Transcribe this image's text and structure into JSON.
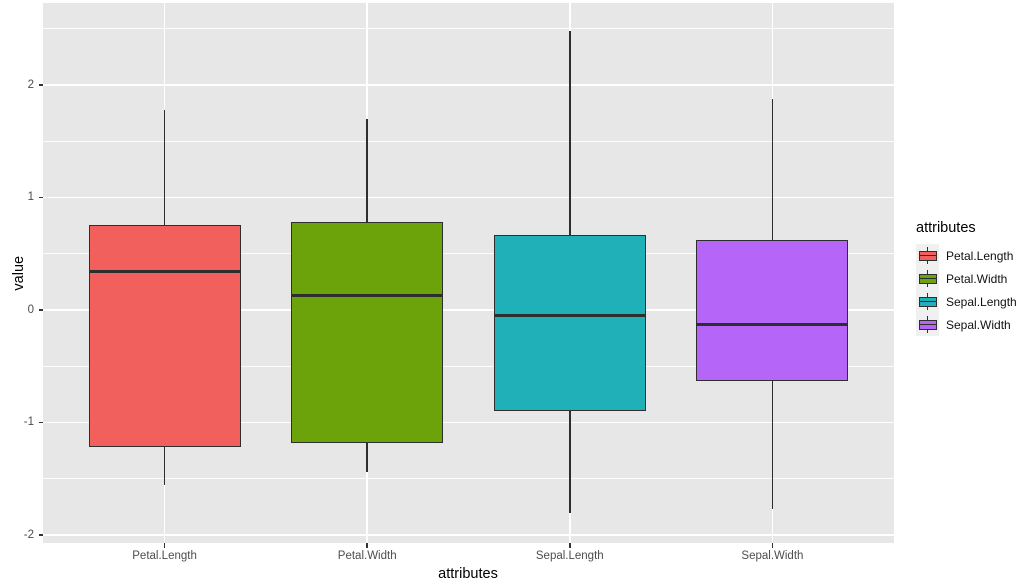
{
  "chart_data": {
    "type": "boxplot",
    "title": "",
    "xlabel": "attributes",
    "ylabel": "value",
    "categories": [
      "Petal.Length",
      "Petal.Width",
      "Sepal.Length",
      "Sepal.Width"
    ],
    "series": [
      {
        "name": "Petal.Length",
        "color": "#F1605D",
        "min": -1.55,
        "q1": -1.22,
        "median": 0.34,
        "q3": 0.76,
        "max": 1.78
      },
      {
        "name": "Petal.Width",
        "color": "#6CA30B",
        "min": -1.44,
        "q1": -1.18,
        "median": 0.13,
        "q3": 0.78,
        "max": 1.7
      },
      {
        "name": "Sepal.Length",
        "color": "#1FB1B7",
        "min": -1.8,
        "q1": -0.9,
        "median": -0.05,
        "q3": 0.67,
        "max": 2.48
      },
      {
        "name": "Sepal.Width",
        "color": "#B565F7",
        "min": -1.77,
        "q1": -0.63,
        "median": -0.13,
        "q3": 0.62,
        "max": 1.88
      }
    ],
    "y_ticks": [
      "2",
      "1",
      "0",
      "-1",
      "-2"
    ],
    "y_tick_values": [
      2,
      1,
      0,
      -1,
      -2
    ],
    "y_minor_tick_values": [
      2.5,
      1.5,
      0.5,
      -0.5,
      -1.5
    ],
    "ylim": [
      -2.07,
      2.73
    ],
    "grid": true,
    "legend": {
      "title": "attributes",
      "position": "right",
      "entries": [
        {
          "label": "Petal.Length",
          "color": "#F1605D"
        },
        {
          "label": "Petal.Width",
          "color": "#6CA30B"
        },
        {
          "label": "Sepal.Length",
          "color": "#1FB1B7"
        },
        {
          "label": "Sepal.Width",
          "color": "#B565F7"
        }
      ]
    },
    "colors": {
      "panel_bg": "#E7E7E7",
      "grid": "#FFFFFF",
      "box_border": "#2E2E2E",
      "tick_label": "#4D4D4D",
      "legend_key_bg": "#F0F0F0",
      "axis_title": "#000000"
    }
  }
}
